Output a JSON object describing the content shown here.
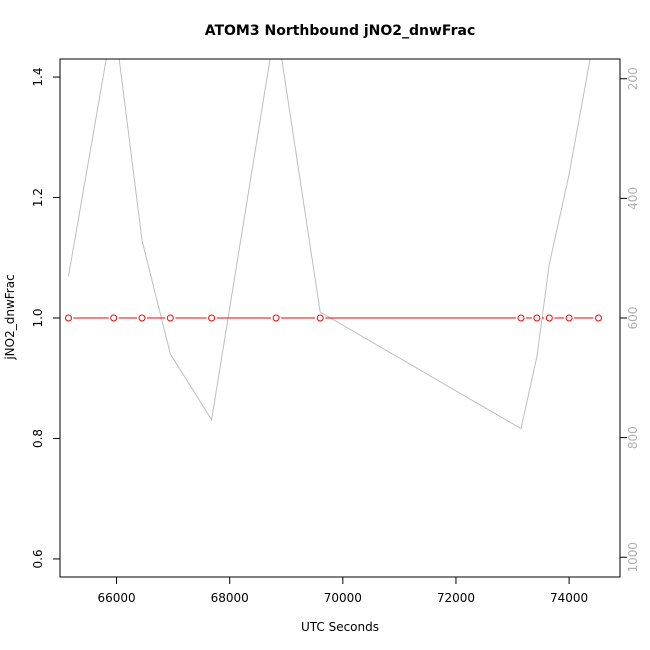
{
  "chart_data": {
    "type": "line",
    "title": "ATOM3 Northbound jNO2_dnwFrac",
    "xlabel": "UTC Seconds",
    "ylabel": "jNO2_dnwFrac",
    "xlim": [
      65000,
      74900
    ],
    "ylim": [
      0.57,
      1.43
    ],
    "x_ticks": [
      "66000",
      "68000",
      "70000",
      "72000",
      "74000"
    ],
    "y_ticks": [
      "0.6",
      "0.8",
      "1.0",
      "1.2",
      "1.4"
    ],
    "y2_ticks": [
      "200",
      "400",
      "600",
      "800",
      "1000"
    ],
    "y2lim": [
      1033,
      167
    ],
    "grid": false,
    "colors": {
      "primary": "#ff0000",
      "secondary": "#bebebe"
    },
    "series": [
      {
        "axis": "left",
        "marker": "open-circle",
        "x": [
          65150,
          65950,
          66450,
          66950,
          67680,
          68820,
          69600,
          73150,
          73430,
          73650,
          74000,
          74520
        ],
        "y": [
          1.0,
          1.0,
          1.0,
          1.0,
          1.0,
          1.0,
          1.0,
          1.0,
          1.0,
          1.0,
          1.0,
          1.0
        ]
      },
      {
        "axis": "right",
        "x": [
          65150,
          65950,
          66450,
          66950,
          67680,
          68820,
          69600,
          73150,
          73430,
          73650,
          74000,
          74520
        ],
        "y": [
          530,
          95,
          470,
          660,
          770,
          105,
          590,
          785,
          665,
          510,
          360,
          90
        ]
      }
    ]
  }
}
